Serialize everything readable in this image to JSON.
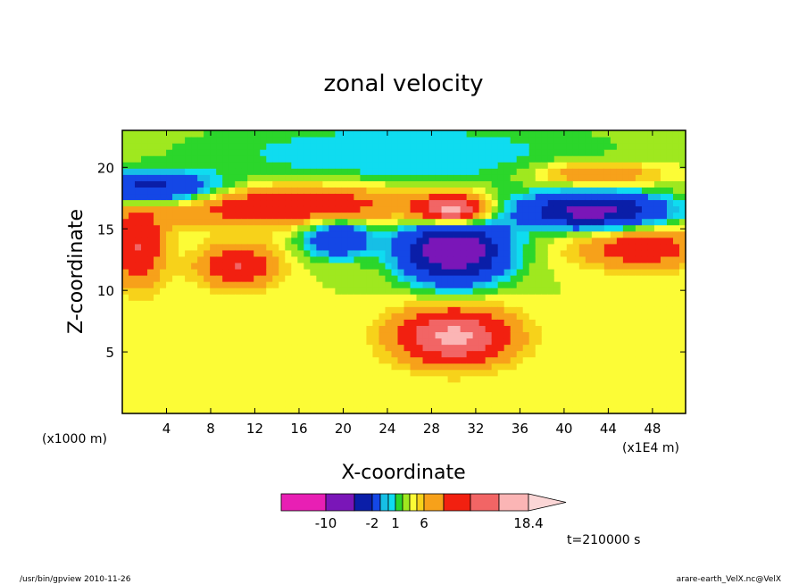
{
  "chart_data": {
    "type": "heatmap",
    "title": "zonal velocity",
    "xlabel": "X-coordinate",
    "ylabel": "Z-coordinate",
    "x_unit_label": "(x1000 m)",
    "x_scale_label": "(x1E4 m)",
    "time_label": "t=210000 s",
    "xlim": [
      0,
      51
    ],
    "ylim": [
      0,
      23
    ],
    "x_ticks": [
      4,
      8,
      12,
      16,
      20,
      24,
      28,
      32,
      36,
      40,
      44,
      48
    ],
    "y_ticks": [
      5,
      10,
      15,
      20
    ],
    "fields": [
      {
        "x": 30,
        "y": 13.3,
        "sx": 3.2,
        "sy": 1.8,
        "a": -17
      },
      {
        "x": 19.5,
        "y": 14.3,
        "sx": 2.2,
        "sy": 1.1,
        "a": -8
      },
      {
        "x": 42.5,
        "y": 16.5,
        "sx": 4.5,
        "sy": 1.0,
        "a": -14
      },
      {
        "x": 2.5,
        "y": 18.3,
        "sx": 4.5,
        "sy": 0.9,
        "a": -10
      },
      {
        "x": 30,
        "y": 16.5,
        "sx": 2.2,
        "sy": 0.9,
        "a": 13
      },
      {
        "x": 30,
        "y": 6.3,
        "sx": 3.6,
        "sy": 1.6,
        "a": 11
      },
      {
        "x": 15,
        "y": 17,
        "sx": 9,
        "sy": 1.2,
        "a": 7
      },
      {
        "x": 10.5,
        "y": 12,
        "sx": 2.5,
        "sy": 1.2,
        "a": 7
      },
      {
        "x": 1.5,
        "y": 13.5,
        "sx": 1.6,
        "sy": 2.2,
        "a": 7
      },
      {
        "x": 47,
        "y": 13.5,
        "sx": 4,
        "sy": 1.2,
        "a": 6
      },
      {
        "x": 43,
        "y": 19.5,
        "sx": 4,
        "sy": 0.7,
        "a": 5
      },
      {
        "x": 25,
        "y": 21,
        "sx": 14,
        "sy": 2.2,
        "a": -3
      }
    ],
    "background_value": 2.0,
    "legend": {
      "levels": [
        -16,
        -10,
        -6,
        -2,
        -1,
        0,
        1,
        2,
        3,
        4,
        6,
        9,
        12,
        15,
        18.4
      ],
      "colors": [
        "#e81fb4",
        "#7a16b8",
        "#0a1ea8",
        "#1447e6",
        "#16bfe6",
        "#0fdcf0",
        "#2bd62b",
        "#9fe81f",
        "#fcfc36",
        "#f7d21a",
        "#f7a11a",
        "#f22010",
        "#f26565",
        "#fbb5b5",
        "#fbd6d6"
      ],
      "labels": [
        "-10",
        "-2",
        "1",
        "6",
        "18.4"
      ]
    }
  },
  "footer": {
    "left": "/usr/bin/gpview  2010-11-26",
    "right": "arare-earth_VelX.nc@VelX"
  }
}
